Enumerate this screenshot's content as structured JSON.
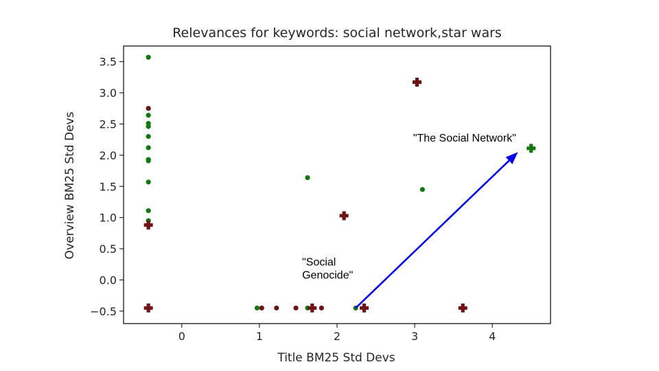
{
  "chart_data": {
    "type": "scatter",
    "title": "Relevances for keywords: social network,star wars",
    "xlabel": "Title BM25 Std Devs",
    "ylabel": "Overview BM25 Std Devs",
    "xlim": [
      -0.75,
      4.75
    ],
    "ylim": [
      -0.7,
      3.75
    ],
    "xticks": [
      0,
      1,
      2,
      3,
      4
    ],
    "xtick_labels": [
      "0",
      "1",
      "2",
      "3",
      "4"
    ],
    "yticks": [
      -0.5,
      0.0,
      0.5,
      1.0,
      1.5,
      2.0,
      2.5,
      3.0,
      3.5
    ],
    "ytick_labels": [
      "−0.5",
      "0.0",
      "0.5",
      "1.0",
      "1.5",
      "2.0",
      "2.5",
      "3.0",
      "3.5"
    ],
    "grid": false,
    "series": [
      {
        "color": "#117711",
        "marker": "dot",
        "points": [
          [
            -0.43,
            3.57
          ],
          [
            -0.43,
            2.64
          ],
          [
            -0.43,
            2.51
          ],
          [
            -0.43,
            2.46
          ],
          [
            -0.43,
            2.3
          ],
          [
            -0.43,
            2.12
          ],
          [
            -0.43,
            1.93
          ],
          [
            -0.43,
            1.91
          ],
          [
            -0.43,
            1.57
          ],
          [
            -0.43,
            1.11
          ],
          [
            -0.43,
            0.95
          ],
          [
            1.62,
            1.64
          ],
          [
            3.1,
            1.45
          ],
          [
            0.97,
            -0.45
          ],
          [
            1.62,
            -0.45
          ],
          [
            2.24,
            -0.45
          ]
        ]
      },
      {
        "color": "#6e1414",
        "marker": "dot",
        "points": [
          [
            -0.43,
            2.75
          ],
          [
            1.03,
            -0.45
          ],
          [
            1.22,
            -0.45
          ],
          [
            1.47,
            -0.45
          ],
          [
            1.8,
            -0.45
          ]
        ]
      },
      {
        "color": "#117711",
        "marker": "plus",
        "points": [
          [
            4.5,
            2.11
          ]
        ]
      },
      {
        "color": "#6e1414",
        "marker": "plus",
        "points": [
          [
            -0.43,
            0.88
          ],
          [
            -0.43,
            -0.45
          ],
          [
            2.09,
            1.03
          ],
          [
            3.03,
            3.17
          ],
          [
            1.68,
            -0.45
          ],
          [
            2.35,
            -0.45
          ],
          [
            3.62,
            -0.45
          ]
        ]
      }
    ],
    "annotations": [
      {
        "lines": [
          "\"The Social Network\""
        ],
        "x": 2.98,
        "y": 2.22
      },
      {
        "lines": [
          "\"Social",
          "Genocide\""
        ],
        "x": 1.55,
        "y": 0.02
      }
    ],
    "arrow": {
      "from": [
        2.24,
        -0.45
      ],
      "to": [
        4.33,
        2.05
      ],
      "color": "#0000ee"
    }
  }
}
